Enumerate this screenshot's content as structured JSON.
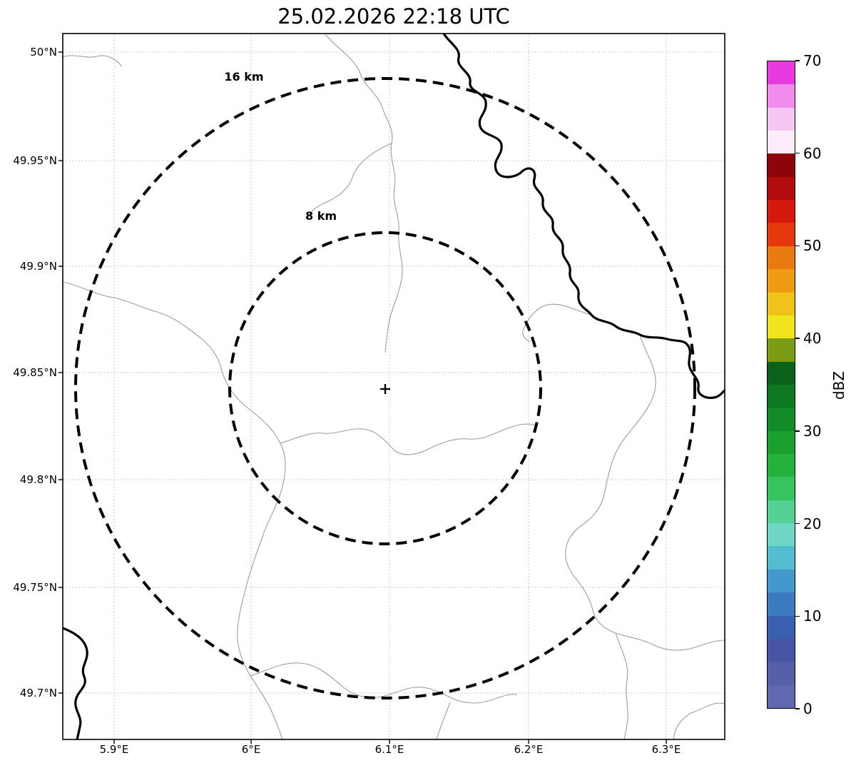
{
  "title": "25.02.2026 22:18 UTC",
  "chart_data": {
    "type": "heatmap",
    "subtype": "weather-radar-range-ring-map",
    "title": "25.02.2026 22:18 UTC",
    "xlabel": "",
    "ylabel": "",
    "x_axis": {
      "tick_labels": [
        "5.9°E",
        "6°E",
        "6.1°E",
        "6.2°E",
        "6.3°E"
      ],
      "range_deg_east": [
        5.86,
        6.34
      ]
    },
    "y_axis": {
      "tick_labels": [
        "50°N",
        "49.95°N",
        "49.9°N",
        "49.85°N",
        "49.8°N",
        "49.75°N",
        "49.7°N"
      ],
      "range_deg_north": [
        49.68,
        50.01
      ]
    },
    "grid": true,
    "radar_center": {
      "lon_deg_east": 6.1,
      "lat_deg_north": 49.84,
      "marker": "+"
    },
    "range_rings": [
      {
        "label": "8 km",
        "radius_km": 8
      },
      {
        "label": "16 km",
        "radius_km": 16
      }
    ],
    "echoes": [],
    "colorbar": {
      "label": "dBZ",
      "min": 0,
      "max": 70,
      "tick_values": [
        0,
        10,
        20,
        30,
        40,
        50,
        60,
        70
      ],
      "segment_step_dbz": 2.5,
      "position": "right",
      "colors": [
        "#5f68b0",
        "#5560aa",
        "#4756a4",
        "#3a5fae",
        "#3a7abe",
        "#4397ca",
        "#53bcd1",
        "#6fd5c5",
        "#55d195",
        "#37c45f",
        "#25b23c",
        "#1aa02f",
        "#128c28",
        "#0d7721",
        "#0a621b",
        "#7d9c16",
        "#f0e41e",
        "#efc31a",
        "#ed9c14",
        "#e97a10",
        "#e5390d",
        "#d6190e",
        "#b10d0d",
        "#8d0509",
        "#fcecfa",
        "#f8c6f3",
        "#f28cec",
        "#e93ae0"
      ]
    }
  }
}
